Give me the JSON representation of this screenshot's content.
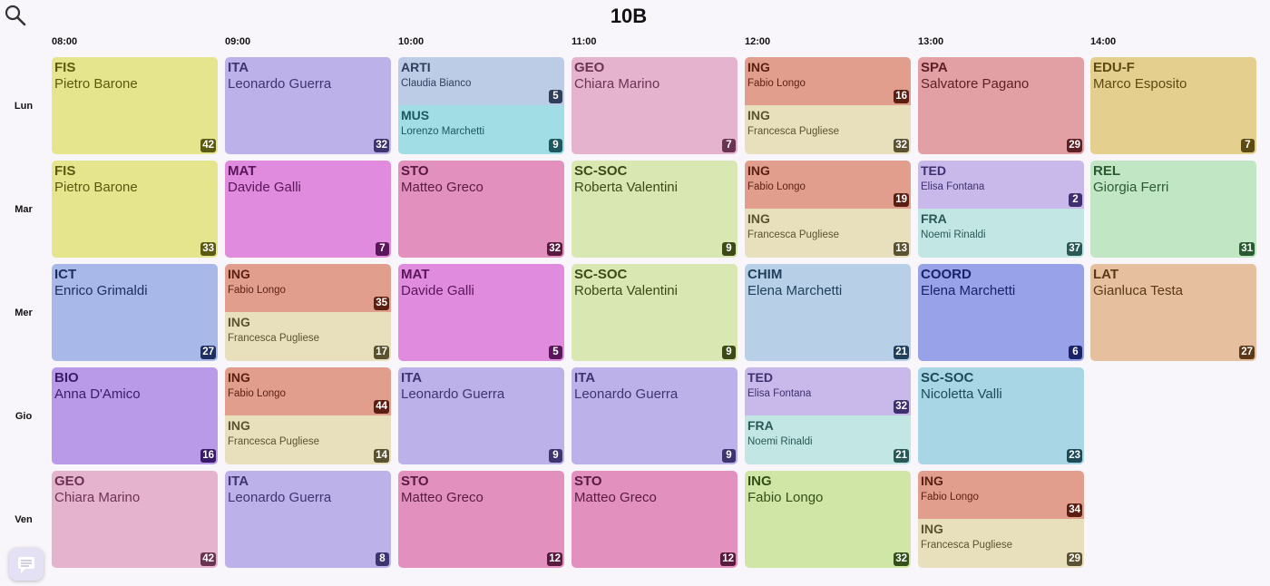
{
  "title": "10B",
  "search_icon": "search-icon",
  "chat_icon": "chat-icon",
  "times": [
    "08:00",
    "09:00",
    "10:00",
    "11:00",
    "12:00",
    "13:00",
    "14:00"
  ],
  "days": [
    "Lun",
    "Mar",
    "Mer",
    "Gio",
    "Ven"
  ],
  "lessons": [
    {
      "day": 0,
      "slot": 0,
      "subject": "FIS",
      "teacher": "Pietro Barone",
      "room": "42",
      "bg": "#e4e58d",
      "fg": "#5a5a10",
      "badge": "#5a5a10"
    },
    {
      "day": 0,
      "slot": 1,
      "subject": "ITA",
      "teacher": "Leonardo Guerra",
      "room": "32",
      "bg": "#bcb1e8",
      "fg": "#3e3470",
      "badge": "#3e3470"
    },
    {
      "day": 0,
      "slot": 2,
      "part": "top",
      "subject": "ARTI",
      "teacher": "Claudia Bianco",
      "room": "5",
      "bg": "#bdcce6",
      "fg": "#2f3e5c",
      "badge": "#2f3e5c"
    },
    {
      "day": 0,
      "slot": 2,
      "part": "bottom",
      "subject": "MUS",
      "teacher": "Lorenzo Marchetti",
      "room": "9",
      "bg": "#a1dde5",
      "fg": "#1d5860",
      "badge": "#1d5860"
    },
    {
      "day": 0,
      "slot": 3,
      "subject": "GEO",
      "teacher": "Chiara Marino",
      "room": "7",
      "bg": "#e6b3cf",
      "fg": "#6a3352",
      "badge": "#6a3352"
    },
    {
      "day": 0,
      "slot": 4,
      "part": "top",
      "subject": "ING",
      "teacher": "Fabio Longo",
      "room": "16",
      "bg": "#e29e8d",
      "fg": "#5a1f12",
      "badge": "#5a1f12"
    },
    {
      "day": 0,
      "slot": 4,
      "part": "bottom",
      "subject": "ING",
      "teacher": "Francesca Pugliese",
      "room": "32",
      "bg": "#e8dfbd",
      "fg": "#5a5230",
      "badge": "#5a5230"
    },
    {
      "day": 0,
      "slot": 5,
      "subject": "SPA",
      "teacher": "Salvatore Pagano",
      "room": "29",
      "bg": "#e2a0a5",
      "fg": "#5c1f24",
      "badge": "#5c1f24"
    },
    {
      "day": 0,
      "slot": 6,
      "subject": "EDU-F",
      "teacher": "Marco Esposito",
      "room": "7",
      "bg": "#e4cf8e",
      "fg": "#5c4a12",
      "badge": "#5c4a12"
    },
    {
      "day": 1,
      "slot": 0,
      "subject": "FIS",
      "teacher": "Pietro Barone",
      "room": "33",
      "bg": "#e4e58d",
      "fg": "#5a5a10",
      "badge": "#5a5a10"
    },
    {
      "day": 1,
      "slot": 1,
      "subject": "MAT",
      "teacher": "Davide Galli",
      "room": "7",
      "bg": "#e08bdd",
      "fg": "#5a165a",
      "badge": "#5a165a"
    },
    {
      "day": 1,
      "slot": 2,
      "subject": "STO",
      "teacher": "Matteo Greco",
      "room": "32",
      "bg": "#e291bf",
      "fg": "#5a1a40",
      "badge": "#5a1a40"
    },
    {
      "day": 1,
      "slot": 3,
      "subject": "SC-SOC",
      "teacher": "Roberta Valentini",
      "room": "9",
      "bg": "#d9e7b3",
      "fg": "#3c4a18",
      "badge": "#3c4a18"
    },
    {
      "day": 1,
      "slot": 4,
      "part": "top",
      "subject": "ING",
      "teacher": "Fabio Longo",
      "room": "19",
      "bg": "#e29e8d",
      "fg": "#5a1f12",
      "badge": "#5a1f12"
    },
    {
      "day": 1,
      "slot": 4,
      "part": "bottom",
      "subject": "ING",
      "teacher": "Francesca Pugliese",
      "room": "13",
      "bg": "#e8dfbd",
      "fg": "#5a5230",
      "badge": "#5a5230"
    },
    {
      "day": 1,
      "slot": 5,
      "part": "top",
      "subject": "TED",
      "teacher": "Elisa Fontana",
      "room": "2",
      "bg": "#c8b9ea",
      "fg": "#3e3070",
      "badge": "#3e3070"
    },
    {
      "day": 1,
      "slot": 5,
      "part": "bottom",
      "subject": "FRA",
      "teacher": "Noemi Rinaldi",
      "room": "37",
      "bg": "#c1e6e4",
      "fg": "#2a5856",
      "badge": "#2a5856"
    },
    {
      "day": 1,
      "slot": 6,
      "subject": "REL",
      "teacher": "Giorgia Ferri",
      "room": "31",
      "bg": "#c1e6c4",
      "fg": "#2a5a30",
      "badge": "#2a5a30"
    },
    {
      "day": 2,
      "slot": 0,
      "subject": "ICT",
      "teacher": "Enrico Grimaldi",
      "room": "27",
      "bg": "#a8b8e8",
      "fg": "#1e2e60",
      "badge": "#1e2e60"
    },
    {
      "day": 2,
      "slot": 1,
      "part": "top",
      "subject": "ING",
      "teacher": "Fabio Longo",
      "room": "35",
      "bg": "#e29e8d",
      "fg": "#5a1f12",
      "badge": "#5a1f12"
    },
    {
      "day": 2,
      "slot": 1,
      "part": "bottom",
      "subject": "ING",
      "teacher": "Francesca Pugliese",
      "room": "17",
      "bg": "#e8dfbd",
      "fg": "#5a5230",
      "badge": "#5a5230"
    },
    {
      "day": 2,
      "slot": 2,
      "subject": "MAT",
      "teacher": "Davide Galli",
      "room": "5",
      "bg": "#e08bdd",
      "fg": "#5a165a",
      "badge": "#5a165a"
    },
    {
      "day": 2,
      "slot": 3,
      "subject": "SC-SOC",
      "teacher": "Roberta Valentini",
      "room": "9",
      "bg": "#d9e7b3",
      "fg": "#3c4a18",
      "badge": "#3c4a18"
    },
    {
      "day": 2,
      "slot": 4,
      "subject": "CHIM",
      "teacher": "Elena Marchetti",
      "room": "21",
      "bg": "#b7d0e8",
      "fg": "#20405c",
      "badge": "#20405c"
    },
    {
      "day": 2,
      "slot": 5,
      "subject": "COORD",
      "teacher": "Elena Marchetti",
      "room": "6",
      "bg": "#97a2e8",
      "fg": "#1a2268",
      "badge": "#1a2268"
    },
    {
      "day": 2,
      "slot": 6,
      "subject": "LAT",
      "teacher": "Gianluca Testa",
      "room": "27",
      "bg": "#e6c09e",
      "fg": "#5a3818",
      "badge": "#5a3818"
    },
    {
      "day": 3,
      "slot": 0,
      "subject": "BIO",
      "teacher": "Anna D'Amico",
      "room": "16",
      "bg": "#b99ae8",
      "fg": "#3a1a6a",
      "badge": "#3a1a6a"
    },
    {
      "day": 3,
      "slot": 1,
      "part": "top",
      "subject": "ING",
      "teacher": "Fabio Longo",
      "room": "44",
      "bg": "#e29e8d",
      "fg": "#5a1f12",
      "badge": "#5a1f12"
    },
    {
      "day": 3,
      "slot": 1,
      "part": "bottom",
      "subject": "ING",
      "teacher": "Francesca Pugliese",
      "room": "14",
      "bg": "#e8dfbd",
      "fg": "#5a5230",
      "badge": "#5a5230"
    },
    {
      "day": 3,
      "slot": 2,
      "subject": "ITA",
      "teacher": "Leonardo Guerra",
      "room": "9",
      "bg": "#bcb1e8",
      "fg": "#3e3470",
      "badge": "#3e3470"
    },
    {
      "day": 3,
      "slot": 3,
      "subject": "ITA",
      "teacher": "Leonardo Guerra",
      "room": "9",
      "bg": "#bcb1e8",
      "fg": "#3e3470",
      "badge": "#3e3470"
    },
    {
      "day": 3,
      "slot": 4,
      "part": "top",
      "subject": "TED",
      "teacher": "Elisa Fontana",
      "room": "32",
      "bg": "#c8b9ea",
      "fg": "#3e3070",
      "badge": "#3e3070"
    },
    {
      "day": 3,
      "slot": 4,
      "part": "bottom",
      "subject": "FRA",
      "teacher": "Noemi Rinaldi",
      "room": "21",
      "bg": "#c1e6e4",
      "fg": "#2a5856",
      "badge": "#2a5856"
    },
    {
      "day": 3,
      "slot": 5,
      "subject": "SC-SOC",
      "teacher": "Nicoletta Valli",
      "room": "23",
      "bg": "#a8d6e4",
      "fg": "#1e4a58",
      "badge": "#1e4a58"
    },
    {
      "day": 4,
      "slot": 0,
      "subject": "GEO",
      "teacher": "Chiara Marino",
      "room": "42",
      "bg": "#e6b3cf",
      "fg": "#6a3352",
      "badge": "#6a3352"
    },
    {
      "day": 4,
      "slot": 1,
      "subject": "ITA",
      "teacher": "Leonardo Guerra",
      "room": "8",
      "bg": "#bcb1e8",
      "fg": "#3e3470",
      "badge": "#3e3470"
    },
    {
      "day": 4,
      "slot": 2,
      "subject": "STO",
      "teacher": "Matteo Greco",
      "room": "12",
      "bg": "#e291bf",
      "fg": "#5a1a40",
      "badge": "#5a1a40"
    },
    {
      "day": 4,
      "slot": 3,
      "subject": "STO",
      "teacher": "Matteo Greco",
      "room": "12",
      "bg": "#e291bf",
      "fg": "#5a1a40",
      "badge": "#5a1a40"
    },
    {
      "day": 4,
      "slot": 4,
      "subject": "ING",
      "teacher": "Fabio Longo",
      "room": "32",
      "bg": "#cfe6a6",
      "fg": "#34501a",
      "badge": "#34501a"
    },
    {
      "day": 4,
      "slot": 5,
      "part": "top",
      "subject": "ING",
      "teacher": "Fabio Longo",
      "room": "34",
      "bg": "#e29e8d",
      "fg": "#5a1f12",
      "badge": "#5a1f12"
    },
    {
      "day": 4,
      "slot": 5,
      "part": "bottom",
      "subject": "ING",
      "teacher": "Francesca Pugliese",
      "room": "29",
      "bg": "#e8dfbd",
      "fg": "#5a5230",
      "badge": "#5a5230"
    }
  ]
}
